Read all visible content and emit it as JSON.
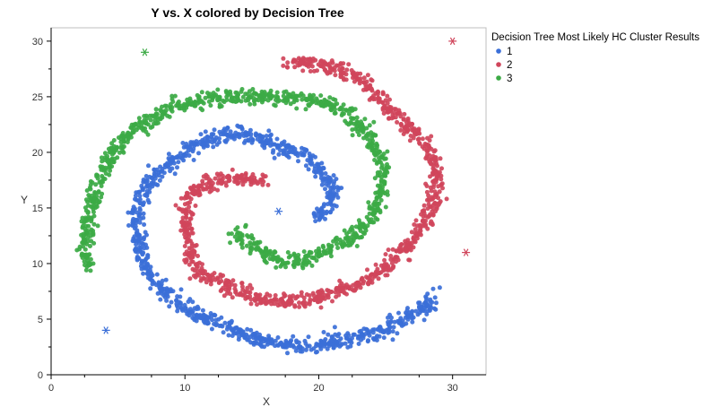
{
  "chart_data": {
    "type": "scatter",
    "title": "Y vs. X colored by Decision Tree",
    "xlabel": "X",
    "ylabel": "Y",
    "xlim": [
      0,
      32.5
    ],
    "ylim": [
      0,
      31.2
    ],
    "x_ticks": [
      0,
      10,
      20,
      30
    ],
    "y_ticks": [
      0,
      5,
      10,
      15,
      20,
      25,
      30
    ],
    "grid": false,
    "legend": {
      "title": "Decision Tree Most Likely HC Cluster Results",
      "placement": "right",
      "entries": [
        {
          "label": "1",
          "color": "#3b6fd8"
        },
        {
          "label": "2",
          "color": "#d0455b"
        },
        {
          "label": "3",
          "color": "#3caa45"
        }
      ]
    },
    "series": [
      {
        "name": "1",
        "color": "#3b6fd8",
        "marker": "dot",
        "spiral_path": [
          [
            19.6,
            14.0
          ],
          [
            20.9,
            15.1
          ],
          [
            21.1,
            16.6
          ],
          [
            20.2,
            18.2
          ],
          [
            19.4,
            19.4
          ],
          [
            17.6,
            20.3
          ],
          [
            15.8,
            21.3
          ],
          [
            14.0,
            21.7
          ],
          [
            12.0,
            21.2
          ],
          [
            10.1,
            20.2
          ],
          [
            8.5,
            18.7
          ],
          [
            6.8,
            16.5
          ],
          [
            6.3,
            13.9
          ],
          [
            6.5,
            11.6
          ],
          [
            7.0,
            9.5
          ],
          [
            8.1,
            7.8
          ],
          [
            9.4,
            6.6
          ],
          [
            11.1,
            5.3
          ],
          [
            13.0,
            4.3
          ],
          [
            15.5,
            3.2
          ],
          [
            17.2,
            2.7
          ],
          [
            19.3,
            2.6
          ],
          [
            21.4,
            3.0
          ],
          [
            23.5,
            3.5
          ],
          [
            25.5,
            4.4
          ],
          [
            26.9,
            5.3
          ],
          [
            28.0,
            6.0
          ],
          [
            28.6,
            7.2
          ]
        ],
        "outliers": [
          [
            4.1,
            4.0
          ],
          [
            17.0,
            14.7
          ]
        ]
      },
      {
        "name": "2",
        "color": "#d0455b",
        "marker": "dot",
        "spiral_path": [
          [
            15.8,
            17.4
          ],
          [
            14.2,
            17.7
          ],
          [
            12.4,
            17.6
          ],
          [
            10.9,
            16.8
          ],
          [
            10.0,
            15.4
          ],
          [
            10.1,
            13.2
          ],
          [
            10.3,
            11.0
          ],
          [
            11.1,
            9.2
          ],
          [
            12.5,
            8.4
          ],
          [
            14.3,
            7.4
          ],
          [
            15.7,
            6.7
          ],
          [
            17.5,
            6.5
          ],
          [
            19.5,
            6.7
          ],
          [
            21.3,
            7.3
          ],
          [
            23.0,
            8.2
          ],
          [
            24.8,
            9.4
          ],
          [
            26.0,
            10.8
          ],
          [
            27.2,
            12.3
          ],
          [
            28.2,
            14.5
          ],
          [
            28.8,
            16.9
          ],
          [
            28.7,
            18.9
          ],
          [
            27.9,
            20.9
          ],
          [
            26.4,
            22.5
          ],
          [
            25.0,
            24.3
          ],
          [
            23.8,
            25.8
          ],
          [
            22.7,
            26.8
          ],
          [
            21.0,
            27.6
          ],
          [
            19.0,
            28.1
          ],
          [
            17.6,
            28.3
          ]
        ],
        "outliers": [
          [
            30.0,
            30.0
          ],
          [
            31.0,
            11.0
          ]
        ]
      },
      {
        "name": "3",
        "color": "#3caa45",
        "marker": "dot",
        "spiral_path": [
          [
            13.9,
            13.1
          ],
          [
            14.3,
            12.1
          ],
          [
            15.5,
            11.2
          ],
          [
            17.2,
            10.1
          ],
          [
            18.8,
            10.3
          ],
          [
            20.5,
            11.1
          ],
          [
            22.0,
            11.9
          ],
          [
            23.3,
            13.1
          ],
          [
            24.2,
            14.9
          ],
          [
            24.8,
            16.8
          ],
          [
            24.8,
            18.6
          ],
          [
            24.2,
            20.4
          ],
          [
            23.3,
            22.1
          ],
          [
            22.2,
            23.6
          ],
          [
            21.1,
            24.2
          ],
          [
            19.3,
            24.7
          ],
          [
            17.3,
            25.0
          ],
          [
            15.3,
            25.1
          ],
          [
            13.3,
            25.0
          ],
          [
            11.3,
            24.7
          ],
          [
            9.2,
            24.1
          ],
          [
            7.4,
            23.0
          ],
          [
            5.6,
            21.5
          ],
          [
            4.5,
            19.7
          ],
          [
            3.4,
            17.5
          ],
          [
            3.2,
            15.2
          ],
          [
            2.7,
            13.2
          ],
          [
            2.5,
            11.1
          ],
          [
            2.9,
            9.3
          ]
        ],
        "outliers": [
          [
            7.0,
            29.0
          ]
        ]
      }
    ]
  }
}
